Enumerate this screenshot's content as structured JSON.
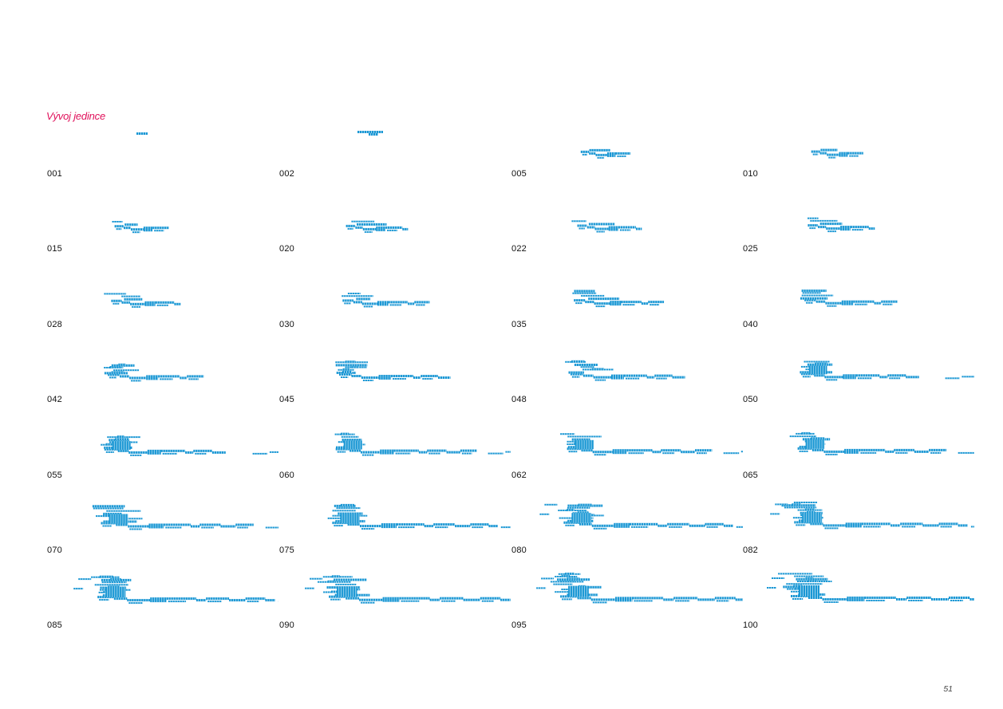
{
  "heading": "Vývoj jedince",
  "accent_color": "#e0105a",
  "drawing_color": "#1a97d4",
  "frames": [
    "001",
    "002",
    "005",
    "010",
    "015",
    "020",
    "022",
    "025",
    "028",
    "030",
    "035",
    "040",
    "042",
    "045",
    "048",
    "050",
    "055",
    "060",
    "062",
    "065",
    "070",
    "075",
    "080",
    "082",
    "085",
    "090",
    "095",
    "100"
  ],
  "page_number": "51"
}
